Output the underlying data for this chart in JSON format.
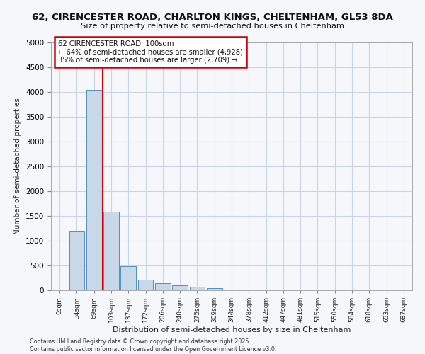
{
  "title_line1": "62, CIRENCESTER ROAD, CHARLTON KINGS, CHELTENHAM, GL53 8DA",
  "title_line2": "Size of property relative to semi-detached houses in Cheltenham",
  "xlabel": "Distribution of semi-detached houses by size in Cheltenham",
  "ylabel": "Number of semi-detached properties",
  "bar_color": "#c8d8e8",
  "bar_edge_color": "#5090c0",
  "vline_color": "#cc0000",
  "annotation_text": "62 CIRENCESTER ROAD: 100sqm\n← 64% of semi-detached houses are smaller (4,928)\n35% of semi-detached houses are larger (2,709) →",
  "annotation_box_color": "#cc0000",
  "categories": [
    "0sqm",
    "34sqm",
    "69sqm",
    "103sqm",
    "137sqm",
    "172sqm",
    "206sqm",
    "240sqm",
    "275sqm",
    "309sqm",
    "344sqm",
    "378sqm",
    "412sqm",
    "447sqm",
    "481sqm",
    "515sqm",
    "550sqm",
    "584sqm",
    "618sqm",
    "653sqm",
    "687sqm"
  ],
  "values": [
    5,
    1200,
    4050,
    1580,
    480,
    210,
    150,
    95,
    70,
    50,
    0,
    0,
    0,
    0,
    0,
    0,
    0,
    0,
    0,
    0,
    0
  ],
  "ylim": [
    0,
    5000
  ],
  "yticks": [
    0,
    500,
    1000,
    1500,
    2000,
    2500,
    3000,
    3500,
    4000,
    4500,
    5000
  ],
  "vline_pos": 2.5,
  "footnote": "Contains HM Land Registry data © Crown copyright and database right 2025.\nContains public sector information licensed under the Open Government Licence v3.0.",
  "background_color": "#f5f7fa",
  "grid_color": "#c8d4e8"
}
